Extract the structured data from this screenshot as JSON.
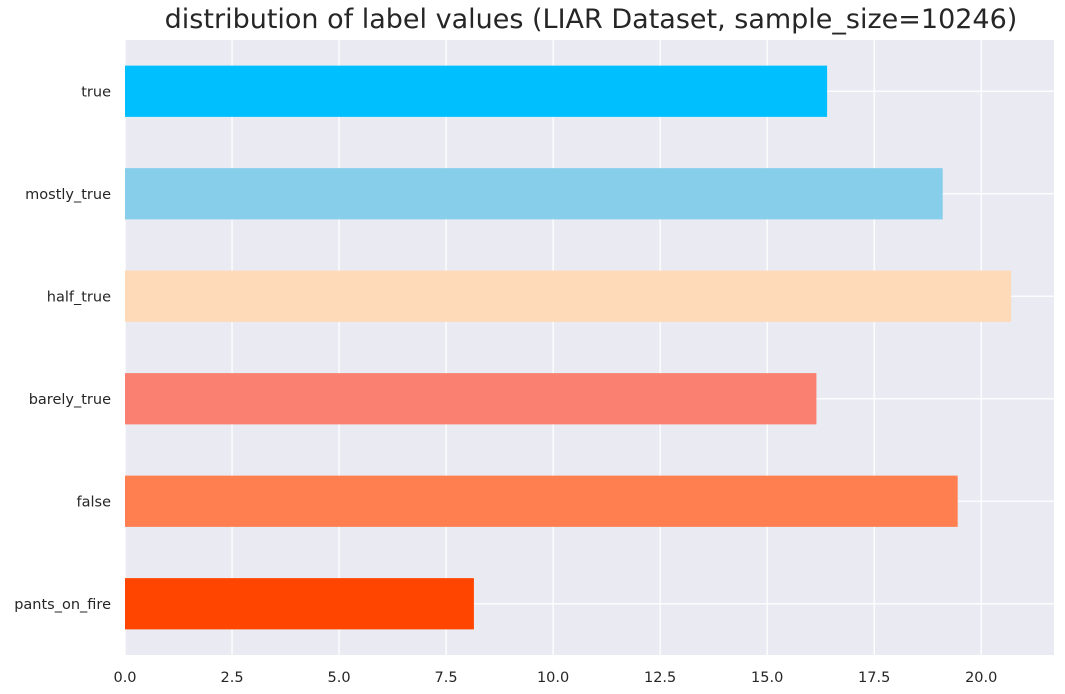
{
  "chart_data": {
    "type": "bar",
    "orientation": "horizontal",
    "title": "distribution of label values (LIAR Dataset, sample_size=10246)",
    "xlabel": "",
    "ylabel": "",
    "categories": [
      "true",
      "mostly_true",
      "half_true",
      "barely_true",
      "false",
      "pants_on_fire"
    ],
    "values": [
      16.4,
      19.1,
      20.7,
      16.15,
      19.45,
      8.15
    ],
    "colors": [
      "#00bfff",
      "#87ceeb",
      "#ffdab9",
      "#fa8072",
      "#ff7f50",
      "#ff4500"
    ],
    "xlim": [
      0,
      21.7
    ],
    "xticks": [
      "0.0",
      "2.5",
      "5.0",
      "7.5",
      "10.0",
      "12.5",
      "15.0",
      "17.5",
      "20.0"
    ],
    "grid": true,
    "background": "#eaeaf2"
  }
}
